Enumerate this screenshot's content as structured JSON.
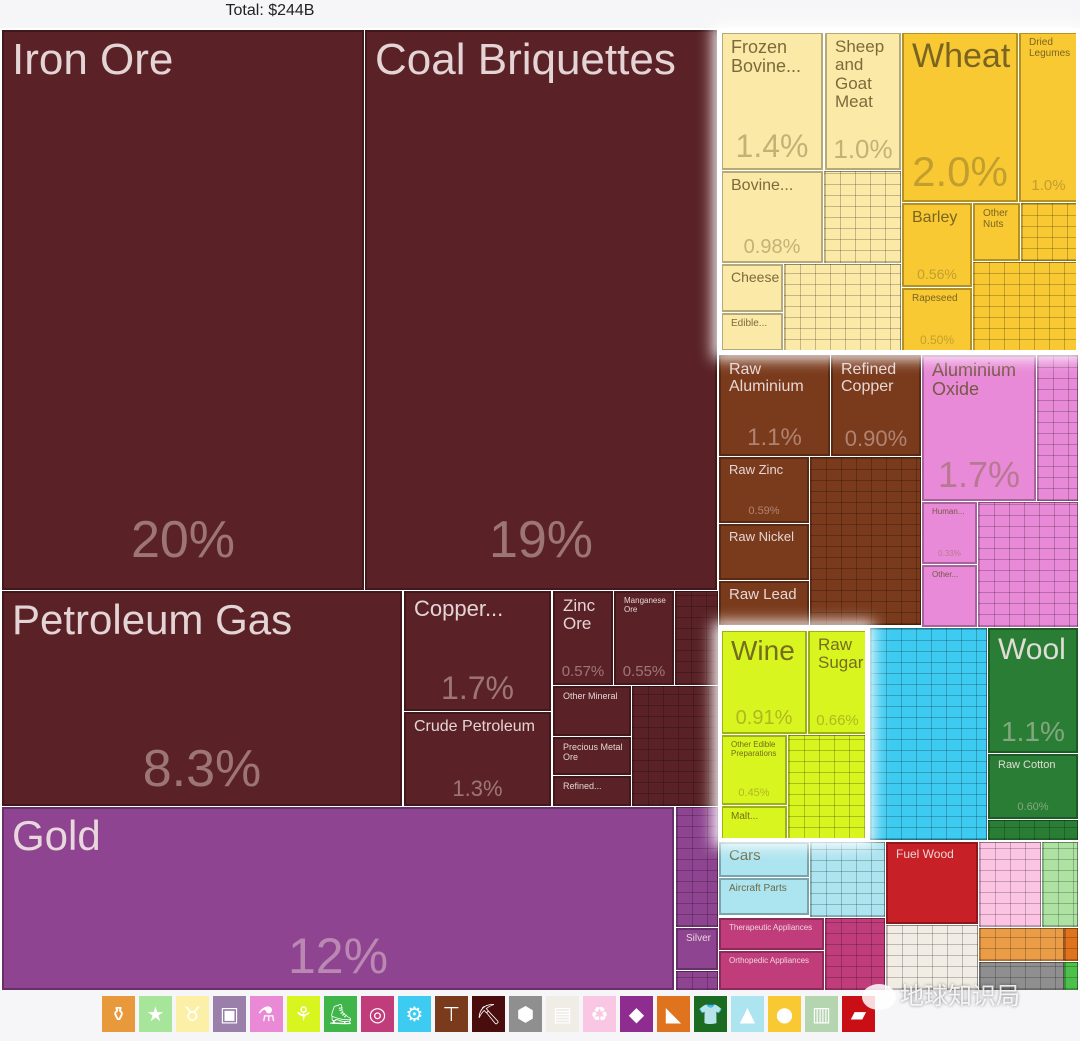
{
  "header": {
    "total": "Total: $244B"
  },
  "chart_data": {
    "type": "treemap",
    "title": "Total: $244B",
    "items": [
      {
        "name": "Iron Ore",
        "share": "20%",
        "group": "Minerals"
      },
      {
        "name": "Coal Briquettes",
        "share": "19%",
        "group": "Minerals"
      },
      {
        "name": "Petroleum Gas",
        "share": "8.3%",
        "group": "Minerals"
      },
      {
        "name": "Copper...",
        "share": "1.7%",
        "group": "Minerals"
      },
      {
        "name": "Crude Petroleum",
        "share": "1.3%",
        "group": "Minerals"
      },
      {
        "name": "Zinc Ore",
        "share": "0.57%",
        "group": "Minerals"
      },
      {
        "name": "Manganese Ore",
        "share": "0.55%",
        "group": "Minerals"
      },
      {
        "name": "Other Mineral",
        "share": "",
        "group": "Minerals"
      },
      {
        "name": "Precious Metal Ore",
        "share": "",
        "group": "Minerals"
      },
      {
        "name": "Refined...",
        "share": "",
        "group": "Minerals"
      },
      {
        "name": "Gold",
        "share": "12%",
        "group": "Precious Metals"
      },
      {
        "name": "Silver",
        "share": "",
        "group": "Precious Metals"
      },
      {
        "name": "Frozen Bovine...",
        "share": "1.4%",
        "group": "Animal Products"
      },
      {
        "name": "Sheep and Goat Meat",
        "share": "1.0%",
        "group": "Animal Products"
      },
      {
        "name": "Bovine...",
        "share": "0.98%",
        "group": "Animal Products"
      },
      {
        "name": "Cheese",
        "share": "",
        "group": "Animal Products"
      },
      {
        "name": "Edible...",
        "share": "",
        "group": "Animal Products"
      },
      {
        "name": "Wheat",
        "share": "2.0%",
        "group": "Vegetable Products"
      },
      {
        "name": "Dried Legumes",
        "share": "1.0%",
        "group": "Vegetable Products"
      },
      {
        "name": "Barley",
        "share": "0.56%",
        "group": "Vegetable Products"
      },
      {
        "name": "Other Nuts",
        "share": "",
        "group": "Vegetable Products"
      },
      {
        "name": "Rapeseed",
        "share": "0.50%",
        "group": "Vegetable Products"
      },
      {
        "name": "Raw Aluminium",
        "share": "1.1%",
        "group": "Metals"
      },
      {
        "name": "Refined Copper",
        "share": "0.90%",
        "group": "Metals"
      },
      {
        "name": "Raw Zinc",
        "share": "0.59%",
        "group": "Metals"
      },
      {
        "name": "Raw Nickel",
        "share": "",
        "group": "Metals"
      },
      {
        "name": "Raw Lead",
        "share": "",
        "group": "Metals"
      },
      {
        "name": "Aluminium Oxide",
        "share": "1.7%",
        "group": "Chemical Products"
      },
      {
        "name": "Human...",
        "share": "0.33%",
        "group": "Chemical Products"
      },
      {
        "name": "Other...",
        "share": "",
        "group": "Chemical Products"
      },
      {
        "name": "Wine",
        "share": "0.91%",
        "group": "Foodstuffs"
      },
      {
        "name": "Raw Sugar",
        "share": "0.66%",
        "group": "Foodstuffs"
      },
      {
        "name": "Other Edible Preparations",
        "share": "0.45%",
        "group": "Foodstuffs"
      },
      {
        "name": "Malt...",
        "share": "",
        "group": "Foodstuffs"
      },
      {
        "name": "Wool",
        "share": "1.1%",
        "group": "Textiles"
      },
      {
        "name": "Raw Cotton",
        "share": "0.60%",
        "group": "Textiles"
      },
      {
        "name": "Cars",
        "share": "",
        "group": "Transportation"
      },
      {
        "name": "Aircraft Parts",
        "share": "",
        "group": "Transportation"
      },
      {
        "name": "Therapeutic Appliances",
        "share": "",
        "group": "Instruments"
      },
      {
        "name": "Orthopedic Appliances",
        "share": "",
        "group": "Instruments"
      },
      {
        "name": "Fuel Wood",
        "share": "",
        "group": "Wood Products"
      }
    ],
    "colors": {
      "Minerals": "#5a2226",
      "Precious Metals": "#8e4490",
      "Animal Products": "#fbe9a8",
      "Vegetable Products": "#f9c933",
      "Metals": "#7a3a1c",
      "Chemical Products": "#e88ad8",
      "Foodstuffs": "#d9f51f",
      "Machines": "#3ecbf1",
      "Textiles": "#2a7d34",
      "Transportation": "#ace4ef",
      "Instruments": "#c13c7b",
      "Wood Products": "#c72026"
    }
  },
  "legend": [
    {
      "icon": "bottle-icon",
      "color": "#e8993b",
      "glyph": "⚱"
    },
    {
      "icon": "hide-icon",
      "color": "#a6e59a",
      "glyph": "★"
    },
    {
      "icon": "animal-icon",
      "color": "#fcf0a8",
      "glyph": "♉"
    },
    {
      "icon": "art-icon",
      "color": "#9b7fab",
      "glyph": "▣"
    },
    {
      "icon": "flask-icon",
      "color": "#ea8ad7",
      "glyph": "⚗"
    },
    {
      "icon": "wheat-icon",
      "color": "#d9f51f",
      "glyph": "⚘"
    },
    {
      "icon": "shoe-icon",
      "color": "#3fb54a",
      "glyph": "⛸"
    },
    {
      "icon": "gauge-icon",
      "color": "#c13c7b",
      "glyph": "◎"
    },
    {
      "icon": "gears-icon",
      "color": "#3ecbf1",
      "glyph": "⚙"
    },
    {
      "icon": "anvil-icon",
      "color": "#7a3a1c",
      "glyph": "⊤"
    },
    {
      "icon": "pickaxe-icon",
      "color": "#4a0d0d",
      "glyph": "⛏"
    },
    {
      "icon": "box-icon",
      "color": "#8f8f8f",
      "glyph": "⬢"
    },
    {
      "icon": "paper-icon",
      "color": "#efede6",
      "glyph": "▤"
    },
    {
      "icon": "recycle-icon",
      "color": "#f9c7e4",
      "glyph": "♻"
    },
    {
      "icon": "diamond-icon",
      "color": "#8e2c8f",
      "glyph": "◆"
    },
    {
      "icon": "stone-icon",
      "color": "#e0731e",
      "glyph": "◣"
    },
    {
      "icon": "shirt-icon",
      "color": "#1b6b22",
      "glyph": "👕"
    },
    {
      "icon": "road-icon",
      "color": "#ace4ef",
      "glyph": "▲"
    },
    {
      "icon": "food-icon",
      "color": "#f9c933",
      "glyph": "●"
    },
    {
      "icon": "fat-icon",
      "color": "#b5d4b0",
      "glyph": "▥"
    },
    {
      "icon": "wood-icon",
      "color": "#c90e16",
      "glyph": "▰"
    }
  ],
  "watermark": "地球知识局"
}
